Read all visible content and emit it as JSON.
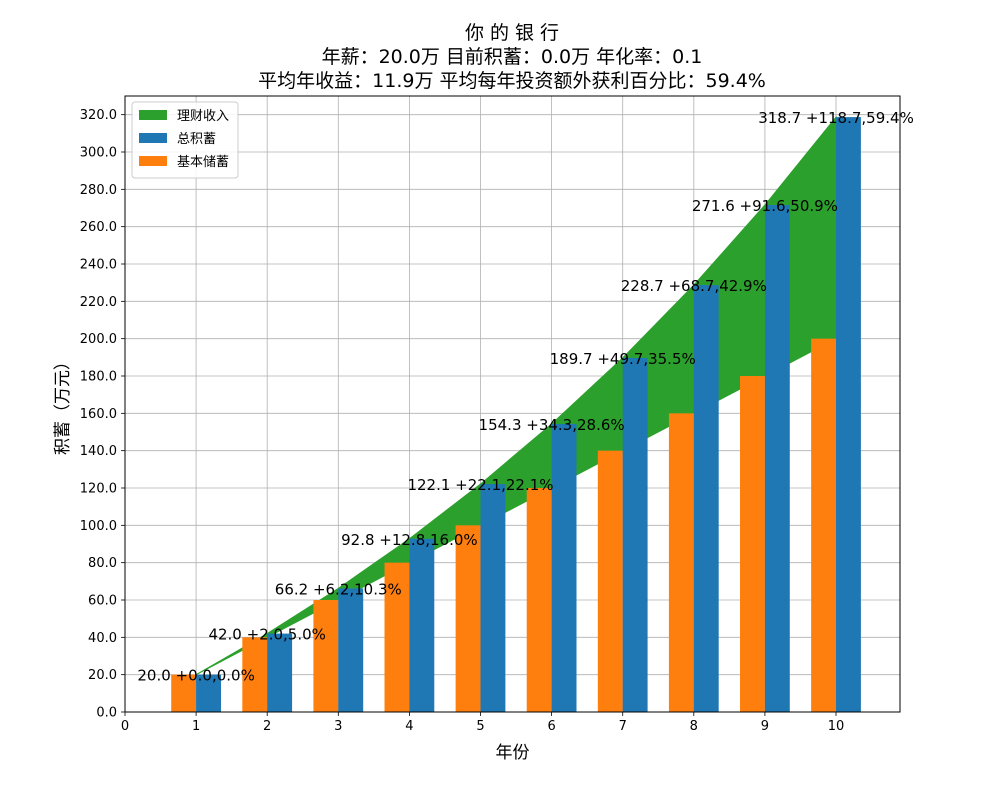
{
  "chart_data": {
    "type": "bar",
    "title_lines": [
      "你 的 银 行",
      "年薪：20.0万 目前积蓄：0.0万 年化率：0.1",
      "平均年收益：11.9万 平均每年投资额外获利百分比：59.4%"
    ],
    "xlabel": "年份",
    "ylabel": "积蓄（万元）",
    "x": [
      1,
      2,
      3,
      4,
      5,
      6,
      7,
      8,
      9,
      10
    ],
    "xlim": [
      0,
      10.9
    ],
    "xticks": [
      "0",
      "1",
      "2",
      "3",
      "4",
      "5",
      "6",
      "7",
      "8",
      "9",
      "10"
    ],
    "ylim": [
      0,
      330
    ],
    "yticks": [
      "0.0",
      "20.0",
      "40.0",
      "60.0",
      "80.0",
      "100.0",
      "120.0",
      "140.0",
      "160.0",
      "180.0",
      "200.0",
      "220.0",
      "240.0",
      "260.0",
      "280.0",
      "300.0",
      "320.0"
    ],
    "grid": true,
    "legend_position": "upper-left",
    "series": [
      {
        "name": "理财收入",
        "kind": "area",
        "color": "#2ca02c",
        "values": [
          0.0,
          2.0,
          6.2,
          12.8,
          22.1,
          34.3,
          49.7,
          68.7,
          91.6,
          118.7
        ]
      },
      {
        "name": "总积蓄",
        "kind": "bar",
        "color": "#1f77b4",
        "values": [
          20.0,
          42.0,
          66.2,
          92.8,
          122.1,
          154.3,
          189.7,
          228.7,
          271.6,
          318.7
        ]
      },
      {
        "name": "基本储蓄",
        "kind": "bar",
        "color": "#ff7f0e",
        "values": [
          20,
          40,
          60,
          80,
          100,
          120,
          140,
          160,
          180,
          200
        ]
      }
    ],
    "data_labels": [
      "20.0 +0.0,0.0%",
      "42.0 +2.0,5.0%",
      "66.2 +6.2,10.3%",
      "92.8 +12.8,16.0%",
      "122.1 +22.1,22.1%",
      "154.3 +34.3,28.6%",
      "189.7 +49.7,35.5%",
      "228.7 +68.7,42.9%",
      "271.6 +91.6,50.9%",
      "318.7 +118.7,59.4%"
    ]
  }
}
